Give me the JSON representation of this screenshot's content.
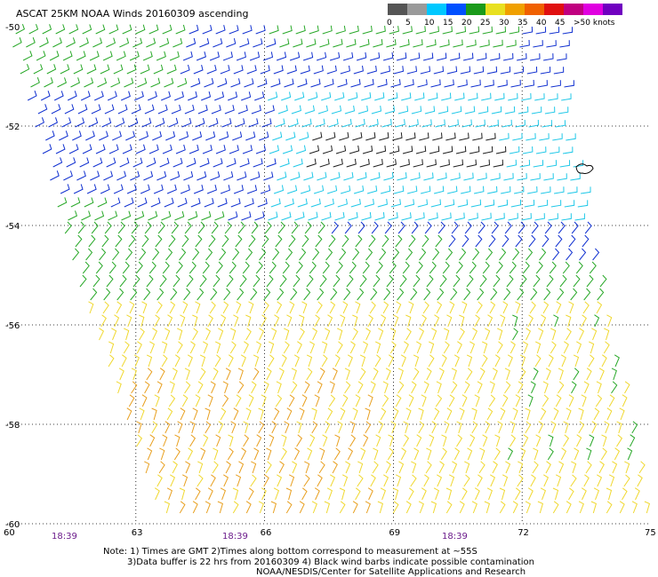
{
  "title": "ASCAT 25KM NOAA Winds 20160309 ascending",
  "legend": {
    "ticks": [
      "0",
      "5",
      "10",
      "15",
      "20",
      "25",
      "30",
      "35",
      "40",
      "45",
      ">50 knots"
    ],
    "colors": [
      "#555555",
      "#9a9a9a",
      "#00c8ff",
      "#0050ff",
      "#1a9a1a",
      "#e8e020",
      "#f0a000",
      "#f06000",
      "#e01010",
      "#c00080",
      "#e000e0",
      "#7000c0"
    ]
  },
  "axes": {
    "lat_labels": [
      "-50",
      "-52",
      "-54",
      "-56",
      "-58",
      "-60"
    ],
    "lon_labels": [
      "60",
      "63",
      "66",
      "69",
      "72",
      "75"
    ],
    "time_labels": [
      "18:39",
      "18:39",
      "18:39"
    ]
  },
  "notes": {
    "line1": "Note: 1) Times are GMT 2)Times along bottom correspond to measurement at ~55S",
    "line2": "3)Data buffer is 22 hrs from 20160309 4) Black wind barbs indicate possible contamination",
    "line3": "NOAA/NESDIS/Center for Satellite Applications and Research"
  },
  "colors": {
    "background": "#ffffff",
    "grid": "#000000",
    "time_label": "#6a1a8a",
    "barb_blue": "#1030d0",
    "barb_cyan": "#20c8e8",
    "barb_green": "#28a828",
    "barb_yellow": "#f0d830",
    "barb_orange": "#e8a020",
    "barb_black": "#202020"
  }
}
